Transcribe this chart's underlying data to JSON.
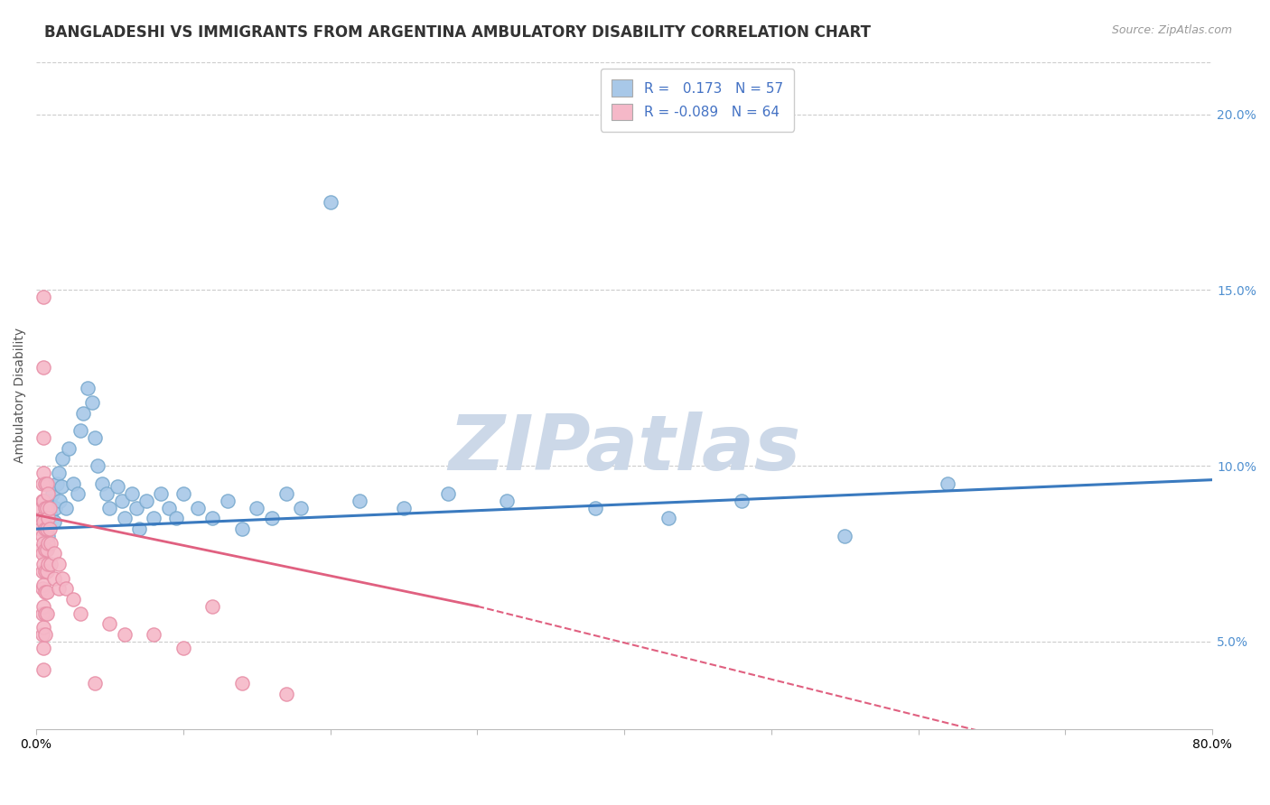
{
  "title": "BANGLADESHI VS IMMIGRANTS FROM ARGENTINA AMBULATORY DISABILITY CORRELATION CHART",
  "source": "Source: ZipAtlas.com",
  "ylabel": "Ambulatory Disability",
  "y_ticks": [
    0.05,
    0.1,
    0.15,
    0.2
  ],
  "y_tick_labels": [
    "5.0%",
    "10.0%",
    "15.0%",
    "20.0%"
  ],
  "xlim": [
    0.0,
    0.8
  ],
  "ylim": [
    0.025,
    0.215
  ],
  "blue_R": 0.173,
  "blue_N": 57,
  "pink_R": -0.089,
  "pink_N": 64,
  "blue_color": "#a8c8e8",
  "pink_color": "#f5b8c8",
  "blue_edge_color": "#7aaace",
  "pink_edge_color": "#e890a8",
  "blue_line_color": "#3a7abf",
  "pink_line_color": "#e06080",
  "blue_scatter": [
    [
      0.005,
      0.085
    ],
    [
      0.006,
      0.082
    ],
    [
      0.007,
      0.088
    ],
    [
      0.008,
      0.08
    ],
    [
      0.009,
      0.09
    ],
    [
      0.01,
      0.086
    ],
    [
      0.011,
      0.092
    ],
    [
      0.012,
      0.084
    ],
    [
      0.013,
      0.088
    ],
    [
      0.014,
      0.095
    ],
    [
      0.015,
      0.098
    ],
    [
      0.016,
      0.09
    ],
    [
      0.017,
      0.094
    ],
    [
      0.018,
      0.102
    ],
    [
      0.02,
      0.088
    ],
    [
      0.022,
      0.105
    ],
    [
      0.025,
      0.095
    ],
    [
      0.028,
      0.092
    ],
    [
      0.03,
      0.11
    ],
    [
      0.032,
      0.115
    ],
    [
      0.035,
      0.122
    ],
    [
      0.038,
      0.118
    ],
    [
      0.04,
      0.108
    ],
    [
      0.042,
      0.1
    ],
    [
      0.045,
      0.095
    ],
    [
      0.048,
      0.092
    ],
    [
      0.05,
      0.088
    ],
    [
      0.055,
      0.094
    ],
    [
      0.058,
      0.09
    ],
    [
      0.06,
      0.085
    ],
    [
      0.065,
      0.092
    ],
    [
      0.068,
      0.088
    ],
    [
      0.07,
      0.082
    ],
    [
      0.075,
      0.09
    ],
    [
      0.08,
      0.085
    ],
    [
      0.085,
      0.092
    ],
    [
      0.09,
      0.088
    ],
    [
      0.095,
      0.085
    ],
    [
      0.1,
      0.092
    ],
    [
      0.11,
      0.088
    ],
    [
      0.12,
      0.085
    ],
    [
      0.13,
      0.09
    ],
    [
      0.14,
      0.082
    ],
    [
      0.15,
      0.088
    ],
    [
      0.16,
      0.085
    ],
    [
      0.17,
      0.092
    ],
    [
      0.18,
      0.088
    ],
    [
      0.2,
      0.175
    ],
    [
      0.22,
      0.09
    ],
    [
      0.25,
      0.088
    ],
    [
      0.28,
      0.092
    ],
    [
      0.32,
      0.09
    ],
    [
      0.38,
      0.088
    ],
    [
      0.43,
      0.085
    ],
    [
      0.48,
      0.09
    ],
    [
      0.55,
      0.08
    ],
    [
      0.62,
      0.095
    ]
  ],
  "pink_scatter": [
    [
      0.003,
      0.088
    ],
    [
      0.003,
      0.082
    ],
    [
      0.003,
      0.076
    ],
    [
      0.004,
      0.095
    ],
    [
      0.004,
      0.09
    ],
    [
      0.004,
      0.085
    ],
    [
      0.004,
      0.08
    ],
    [
      0.004,
      0.075
    ],
    [
      0.004,
      0.07
    ],
    [
      0.004,
      0.065
    ],
    [
      0.004,
      0.058
    ],
    [
      0.004,
      0.052
    ],
    [
      0.005,
      0.148
    ],
    [
      0.005,
      0.128
    ],
    [
      0.005,
      0.108
    ],
    [
      0.005,
      0.098
    ],
    [
      0.005,
      0.09
    ],
    [
      0.005,
      0.084
    ],
    [
      0.005,
      0.078
    ],
    [
      0.005,
      0.072
    ],
    [
      0.005,
      0.066
    ],
    [
      0.005,
      0.06
    ],
    [
      0.005,
      0.054
    ],
    [
      0.005,
      0.048
    ],
    [
      0.005,
      0.042
    ],
    [
      0.006,
      0.095
    ],
    [
      0.006,
      0.088
    ],
    [
      0.006,
      0.082
    ],
    [
      0.006,
      0.076
    ],
    [
      0.006,
      0.07
    ],
    [
      0.006,
      0.064
    ],
    [
      0.006,
      0.058
    ],
    [
      0.006,
      0.052
    ],
    [
      0.007,
      0.095
    ],
    [
      0.007,
      0.088
    ],
    [
      0.007,
      0.082
    ],
    [
      0.007,
      0.076
    ],
    [
      0.007,
      0.07
    ],
    [
      0.007,
      0.064
    ],
    [
      0.007,
      0.058
    ],
    [
      0.008,
      0.092
    ],
    [
      0.008,
      0.085
    ],
    [
      0.008,
      0.078
    ],
    [
      0.008,
      0.072
    ],
    [
      0.009,
      0.088
    ],
    [
      0.009,
      0.082
    ],
    [
      0.01,
      0.078
    ],
    [
      0.01,
      0.072
    ],
    [
      0.012,
      0.075
    ],
    [
      0.012,
      0.068
    ],
    [
      0.015,
      0.072
    ],
    [
      0.015,
      0.065
    ],
    [
      0.018,
      0.068
    ],
    [
      0.02,
      0.065
    ],
    [
      0.025,
      0.062
    ],
    [
      0.03,
      0.058
    ],
    [
      0.04,
      0.038
    ],
    [
      0.05,
      0.055
    ],
    [
      0.06,
      0.052
    ],
    [
      0.08,
      0.052
    ],
    [
      0.1,
      0.048
    ],
    [
      0.12,
      0.06
    ],
    [
      0.14,
      0.038
    ],
    [
      0.17,
      0.035
    ]
  ],
  "blue_trend": [
    0.0,
    0.8,
    0.082,
    0.096
  ],
  "pink_trend_solid": [
    0.0,
    0.3,
    0.086,
    0.06
  ],
  "pink_trend_dash": [
    0.3,
    0.8,
    0.06,
    0.008
  ],
  "background_color": "#ffffff",
  "grid_color": "#cccccc",
  "watermark_text": "ZIPatlas",
  "watermark_color": "#ccd8e8",
  "title_fontsize": 12,
  "axis_label_fontsize": 10,
  "tick_fontsize": 10,
  "legend_fontsize": 11
}
